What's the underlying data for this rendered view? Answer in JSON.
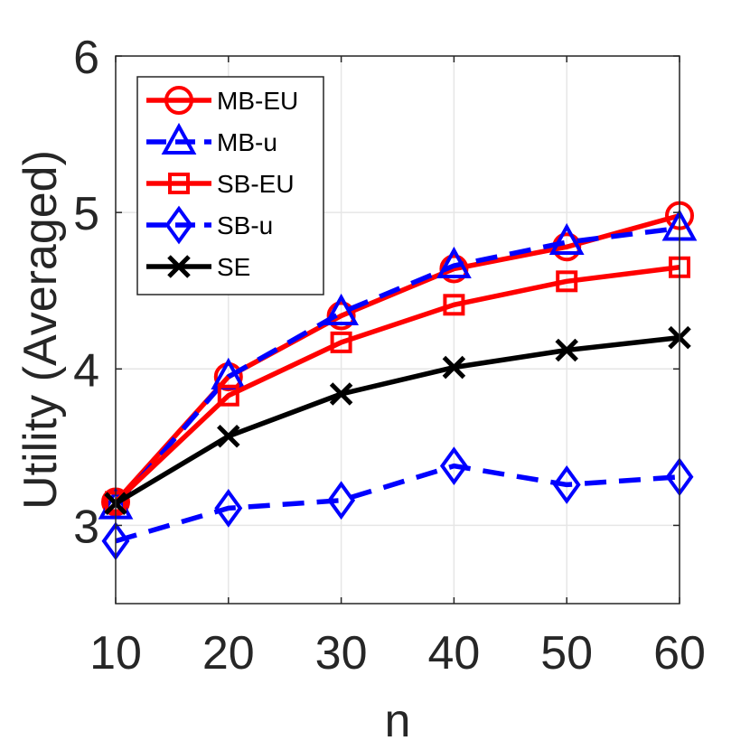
{
  "chart_data": {
    "type": "line",
    "xlabel": "n",
    "ylabel": "Utility (Averaged)",
    "x": [
      10,
      20,
      30,
      40,
      50,
      60
    ],
    "xlim": [
      10,
      60
    ],
    "ylim": [
      2.5,
      6
    ],
    "xticks": [
      "10",
      "20",
      "30",
      "40",
      "50",
      "60"
    ],
    "yticks": [
      "3",
      "4",
      "5",
      "6"
    ],
    "grid": true,
    "legend_position": "top-left",
    "series": [
      {
        "name": "MB-EU",
        "color": "#ff0000",
        "dash": "solid",
        "marker": "circle",
        "values": [
          3.15,
          3.95,
          4.34,
          4.64,
          4.78,
          4.98
        ]
      },
      {
        "name": "MB-u",
        "color": "#0000ff",
        "dash": "dashed",
        "marker": "triangle",
        "values": [
          3.12,
          3.95,
          4.36,
          4.66,
          4.81,
          4.9
        ]
      },
      {
        "name": "SB-EU",
        "color": "#ff0000",
        "dash": "solid",
        "marker": "square",
        "values": [
          3.15,
          3.83,
          4.17,
          4.41,
          4.56,
          4.65
        ]
      },
      {
        "name": "SB-u",
        "color": "#0000ff",
        "dash": "dashed",
        "marker": "diamond",
        "values": [
          2.9,
          3.11,
          3.16,
          3.38,
          3.26,
          3.31
        ]
      },
      {
        "name": "SE",
        "color": "#000000",
        "dash": "solid",
        "marker": "x",
        "values": [
          3.14,
          3.57,
          3.84,
          4.01,
          4.12,
          4.2
        ]
      }
    ]
  }
}
